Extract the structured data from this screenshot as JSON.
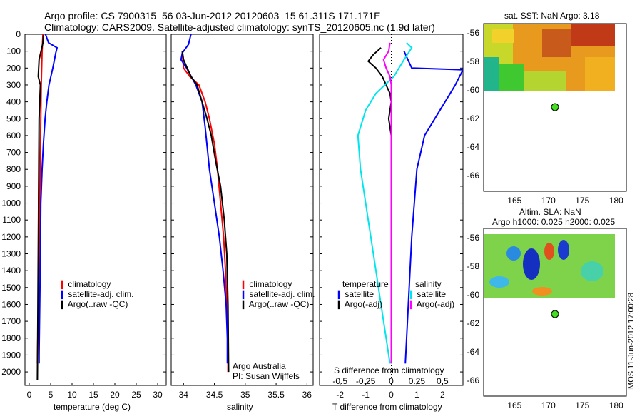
{
  "header": {
    "title_line1": "Argo profile: CS 7900315_56 03-Jun-2012 20120603_15 61.311S 171.171E",
    "title_line2": "Climatology: CARS2009. Satellite-adjusted climatology: synTS_20120605.nc (1.9d later)"
  },
  "panels": {
    "temperature": {
      "xlabel": "temperature (deg C)",
      "xlim": [
        -1,
        32
      ],
      "xticks": [
        "0",
        "5",
        "10",
        "15",
        "20",
        "25",
        "30"
      ],
      "legend": [
        "climatology",
        "satellite-adj. clim.",
        "Argo(..raw -QC)"
      ]
    },
    "salinity": {
      "xlabel": "salinity",
      "xlim": [
        33.8,
        36.1
      ],
      "xticks": [
        "34",
        "34.5",
        "35",
        "35.5",
        "36"
      ],
      "legend": [
        "climatology",
        "satellite-adj. clim.",
        "Argo(..raw -QC)"
      ],
      "note_line1": "Argo Australia",
      "note_line2": "PI: Susan Wijffels"
    },
    "difference": {
      "xlabel_bottom": "T difference from climatology",
      "xlabel_top": "S difference from climatology",
      "xticks_bottom": [
        "-2",
        "-1",
        "0",
        "1",
        "2"
      ],
      "xticks_top": [
        "-0.5",
        "-0.25",
        "0",
        "0.25",
        "0.5"
      ],
      "legend_temperature_title": "temperature",
      "legend_salinity_title": "salinity",
      "legend_satellite": "satellite",
      "legend_argo_adj": "Argo(-adj)"
    },
    "depth_ticks": [
      "0",
      "100",
      "200",
      "300",
      "400",
      "500",
      "600",
      "700",
      "800",
      "900",
      "1000",
      "1100",
      "1200",
      "1300",
      "1400",
      "1500",
      "1600",
      "1700",
      "1800",
      "1900",
      "2000"
    ],
    "sst_map": {
      "title": "sat. SST: NaN Argo: 3.18",
      "yticks": [
        "-56",
        "-58",
        "-60",
        "-62",
        "-64",
        "-66"
      ],
      "xticks": [
        "165",
        "170",
        "175",
        "180"
      ]
    },
    "sla_map": {
      "title_line1": "Altim. SLA: NaN",
      "title_line2": "Argo h1000: 0.025 h2000: 0.025",
      "yticks": [
        "-56",
        "-58",
        "-60",
        "-62",
        "-64",
        "-66"
      ],
      "xticks": [
        "165",
        "170",
        "175",
        "180"
      ]
    },
    "stamp": "IMOS 11-Jun-2012 17:00:28"
  },
  "chart_data": [
    {
      "type": "line",
      "xlabel": "temperature (deg C)",
      "ylabel": "",
      "xlim": [
        -1,
        32
      ],
      "ylim": [
        2080,
        0
      ],
      "series": [
        {
          "name": "climatology",
          "color": "#ff0000",
          "x": [
            3.2,
            3.1,
            3.0,
            2.9,
            2.8,
            2.7,
            2.6,
            2.5,
            2.4,
            2.3,
            2.2,
            2.0,
            1.9
          ],
          "y": [
            0,
            50,
            100,
            200,
            300,
            500,
            700,
            900,
            1100,
            1300,
            1500,
            1800,
            1950
          ]
        },
        {
          "name": "satellite-adj. clim.",
          "color": "#0000ff",
          "x": [
            3.8,
            4.5,
            6.5,
            6.2,
            5.5,
            4.6,
            4.1,
            3.7,
            3.3,
            3.0,
            2.7,
            2.6,
            2.5,
            2.4,
            2.3,
            2.3
          ],
          "y": [
            0,
            50,
            80,
            110,
            200,
            300,
            400,
            500,
            650,
            800,
            1000,
            1300,
            1500,
            1700,
            1900,
            1950
          ]
        },
        {
          "name": "Argo(..raw -QC)",
          "color": "#000000",
          "x": [
            3.3,
            3.2,
            2.3,
            2.1,
            2.6,
            2.3,
            2.2,
            2.1,
            2.0,
            1.9
          ],
          "y": [
            5,
            50,
            150,
            250,
            300,
            500,
            900,
            1300,
            1700,
            2050
          ]
        }
      ]
    },
    {
      "type": "line",
      "xlabel": "salinity",
      "ylabel": "",
      "xlim": [
        33.8,
        36.1
      ],
      "ylim": [
        2080,
        0
      ],
      "series": [
        {
          "name": "climatology",
          "color": "#ff0000",
          "x": [
            33.98,
            33.99,
            34.0,
            34.1,
            34.25,
            34.35,
            34.42,
            34.5,
            34.55,
            34.6,
            34.65,
            34.68,
            34.7,
            34.72,
            34.72
          ],
          "y": [
            100,
            150,
            200,
            250,
            300,
            400,
            500,
            650,
            800,
            1000,
            1200,
            1400,
            1600,
            1800,
            2000
          ]
        },
        {
          "name": "satellite-adj. clim.",
          "color": "#0000ff",
          "x": [
            34.12,
            34.08,
            33.98,
            33.96,
            34.05,
            34.2,
            34.3,
            34.35,
            34.42,
            34.5,
            34.58,
            34.64,
            34.69,
            34.71,
            34.71
          ],
          "y": [
            0,
            60,
            110,
            150,
            200,
            300,
            400,
            550,
            800,
            1000,
            1200,
            1400,
            1600,
            1800,
            1950
          ]
        },
        {
          "name": "Argo(..raw -QC)",
          "color": "#000000",
          "x": [
            33.98,
            34.0,
            34.06,
            34.12,
            34.22,
            34.3,
            34.38,
            34.45,
            34.52,
            34.6,
            34.66,
            34.7,
            34.72,
            34.73
          ],
          "y": [
            100,
            150,
            200,
            250,
            300,
            400,
            500,
            600,
            750,
            900,
            1100,
            1300,
            1600,
            2000
          ]
        }
      ]
    },
    {
      "type": "line",
      "xlabel": "T difference from climatology",
      "x2label": "S difference from climatology",
      "ylabel": "",
      "xlim": [
        -2.8,
        2.8
      ],
      "ylim": [
        2080,
        0
      ],
      "series": [
        {
          "name": "temperature satellite",
          "color": "#0000ff",
          "x": [
            0.5,
            0.8,
            2.8,
            2.7,
            2.5,
            2.3,
            2.1,
            1.7,
            1.3,
            1.0,
            0.9,
            0.8,
            0.7,
            0.6,
            0.55
          ],
          "y": [
            100,
            200,
            210,
            240,
            300,
            350,
            400,
            500,
            600,
            800,
            1000,
            1200,
            1500,
            1800,
            1950
          ]
        },
        {
          "name": "temperature Argo(-adj)",
          "color": "#000000",
          "x": [
            -0.4,
            -0.7,
            -0.9,
            -0.6,
            -0.35,
            -0.2,
            -0.05,
            0.0,
            -0.1,
            0.0,
            0.0,
            0.0,
            0.0
          ],
          "y": [
            80,
            120,
            160,
            200,
            250,
            300,
            350,
            400,
            500,
            600,
            700,
            1000,
            1950
          ]
        },
        {
          "name": "salinity satellite",
          "color": "#00e5ee",
          "x": [
            0.6,
            0.8,
            0.5,
            0.1,
            -0.6,
            -1.0,
            -1.3,
            -1.2,
            -1.0,
            -0.8,
            -0.6,
            -0.4,
            -0.2,
            -0.05
          ],
          "y": [
            50,
            80,
            150,
            250,
            350,
            450,
            600,
            800,
            1000,
            1200,
            1400,
            1600,
            1800,
            1950
          ]
        },
        {
          "name": "salinity Argo(-adj)",
          "color": "#ff00ff",
          "x": [
            -0.05,
            -0.1,
            -0.3,
            -0.2,
            -0.05,
            0.0,
            0.0,
            0.0,
            0.0
          ],
          "y": [
            50,
            100,
            150,
            200,
            250,
            300,
            400,
            1000,
            1950
          ]
        }
      ]
    }
  ]
}
